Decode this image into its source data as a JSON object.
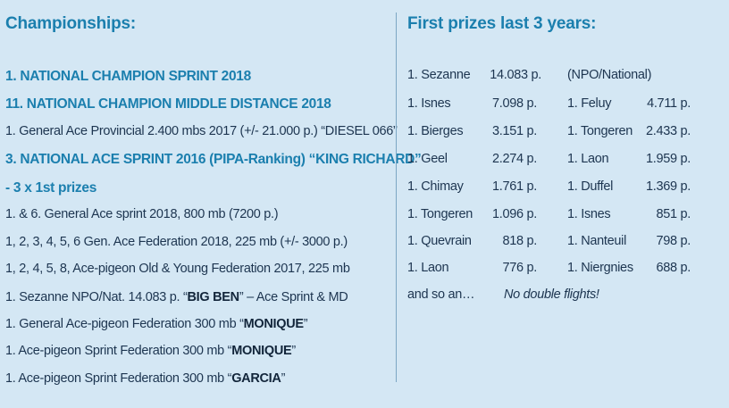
{
  "left": {
    "heading": "Championships:",
    "lines": [
      {
        "type": "hl",
        "text": "1. NATIONAL CHAMPION SPRINT 2018"
      },
      {
        "type": "hl",
        "text": "11. NATIONAL CHAMPION MIDDLE DISTANCE 2018"
      },
      {
        "type": "plain",
        "text": "1. General Ace Provincial 2.400 mbs 2017 (+/- 21.000 p.) “DIESEL 066”"
      },
      {
        "type": "hl",
        "text": "3. NATIONAL ACE SPRINT 2016 (PIPA-Ranking) “KING RICHARD”"
      },
      {
        "type": "hl",
        "text": "- 3 x 1st prizes"
      },
      {
        "type": "plain",
        "text": "1. & 6. General Ace sprint 2018, 800 mb (7200 p.)"
      },
      {
        "type": "plain",
        "text": "1, 2, 3, 4, 5, 6 Gen. Ace Federation 2018, 225 mb (+/- 3000 p.)"
      },
      {
        "type": "plain",
        "text": "1, 2, 4, 5, 8, Ace-pigeon Old & Young Federation 2017, 225 mb"
      },
      {
        "type": "rich",
        "pre": "1. Sezanne NPO/Nat. 14.083 p. “",
        "bold": "BIG BEN",
        "post": "” – Ace Sprint & MD"
      },
      {
        "type": "rich",
        "pre": "1. General Ace-pigeon Federation 300 mb “",
        "bold": "MONIQUE",
        "post": "”"
      },
      {
        "type": "rich",
        "pre": "1. Ace-pigeon Sprint Federation 300 mb “",
        "bold": "MONIQUE",
        "post": "”"
      },
      {
        "type": "rich",
        "pre": "1. Ace-pigeon Sprint Federation 300 mb “",
        "bold": "GARCIA",
        "post": "”"
      }
    ]
  },
  "right": {
    "heading": "First prizes last 3 years:",
    "rows": [
      {
        "p1": "1. Sezanne",
        "c1": "14.083 p.",
        "p2": "(NPO/National)",
        "c2": ""
      },
      {
        "p1": "1. Isnes",
        "c1": "7.098 p.",
        "p2": "1. Feluy",
        "c2": "4.711 p."
      },
      {
        "p1": "1. Bierges",
        "c1": "3.151 p.",
        "p2": "1. Tongeren",
        "c2": "2.433 p."
      },
      {
        "p1": "1. Geel",
        "c1": "2.274 p.",
        "p2": "1. Laon",
        "c2": "1.959 p."
      },
      {
        "p1": "1. Chimay",
        "c1": "1.761 p.",
        "p2": "1. Duffel",
        "c2": "1.369 p."
      },
      {
        "p1": "1. Tongeren",
        "c1": "1.096 p.",
        "p2": "1. Isnes",
        "c2": "851 p."
      },
      {
        "p1": "1. Quevrain",
        "c1": "818 p.",
        "p2": "1. Nanteuil",
        "c2": "798 p."
      },
      {
        "p1": "1. Laon",
        "c1": "776 p.",
        "p2": "1. Niergnies",
        "c2": "688 p."
      }
    ],
    "footer_left": "and so an…",
    "footer_note": "No double flights!"
  }
}
